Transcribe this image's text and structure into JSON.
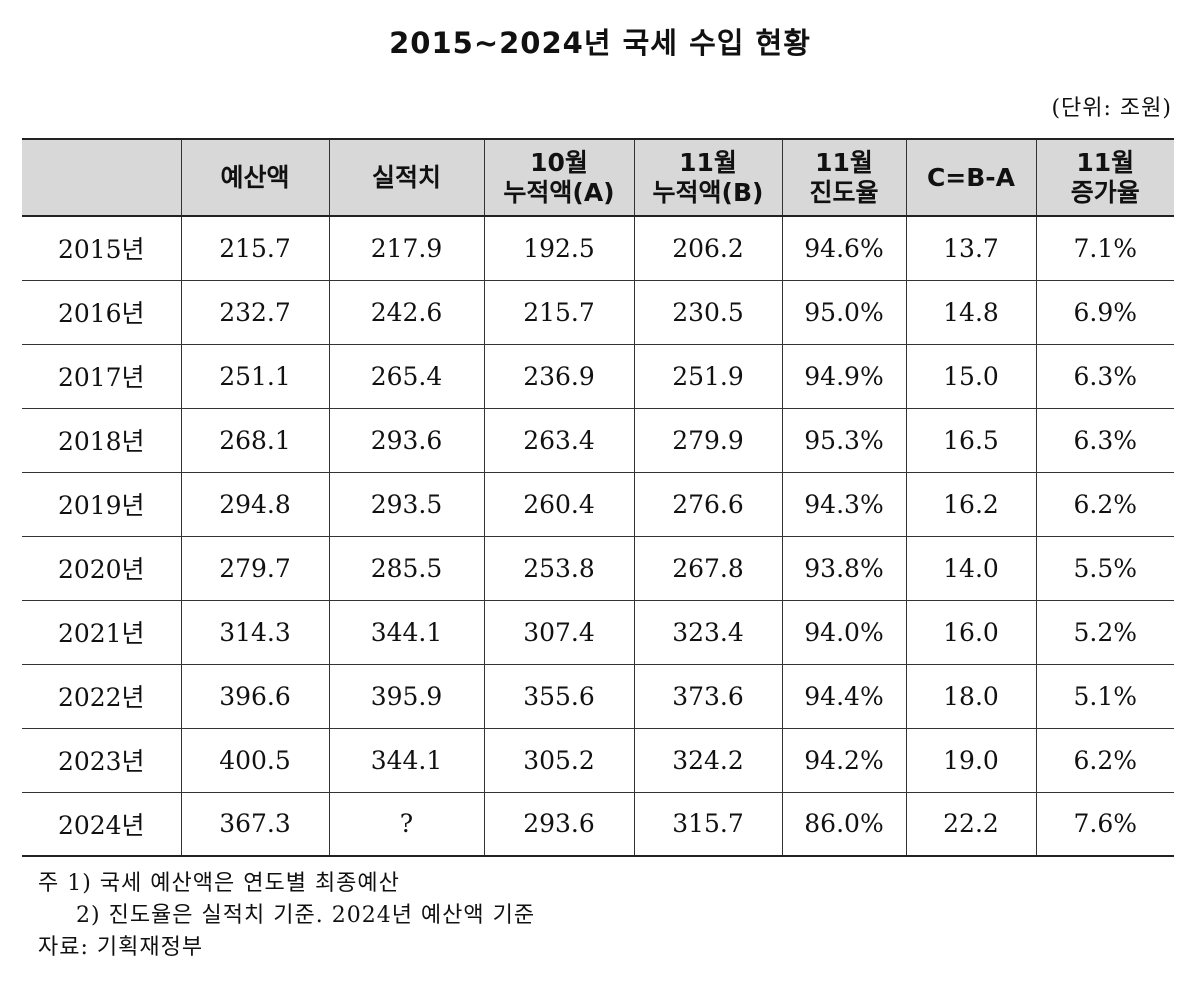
{
  "title": "2015~2024년 국세 수입 현황",
  "unit": "(단위: 조원)",
  "table": {
    "headers": [
      [
        ""
      ],
      [
        "예산액"
      ],
      [
        "실적치"
      ],
      [
        "10월",
        "누적액(A)"
      ],
      [
        "11월",
        "누적액(B)"
      ],
      [
        "11월",
        "진도율"
      ],
      [
        "C=B-A"
      ],
      [
        "11월",
        "증가율"
      ]
    ],
    "rows": [
      [
        "2015년",
        "215.7",
        "217.9",
        "192.5",
        "206.2",
        "94.6%",
        "13.7",
        "7.1%"
      ],
      [
        "2016년",
        "232.7",
        "242.6",
        "215.7",
        "230.5",
        "95.0%",
        "14.8",
        "6.9%"
      ],
      [
        "2017년",
        "251.1",
        "265.4",
        "236.9",
        "251.9",
        "94.9%",
        "15.0",
        "6.3%"
      ],
      [
        "2018년",
        "268.1",
        "293.6",
        "263.4",
        "279.9",
        "95.3%",
        "16.5",
        "6.3%"
      ],
      [
        "2019년",
        "294.8",
        "293.5",
        "260.4",
        "276.6",
        "94.3%",
        "16.2",
        "6.2%"
      ],
      [
        "2020년",
        "279.7",
        "285.5",
        "253.8",
        "267.8",
        "93.8%",
        "14.0",
        "5.5%"
      ],
      [
        "2021년",
        "314.3",
        "344.1",
        "307.4",
        "323.4",
        "94.0%",
        "16.0",
        "5.2%"
      ],
      [
        "2022년",
        "396.6",
        "395.9",
        "355.6",
        "373.6",
        "94.4%",
        "18.0",
        "5.1%"
      ],
      [
        "2023년",
        "400.5",
        "344.1",
        "305.2",
        "324.2",
        "94.2%",
        "19.0",
        "6.2%"
      ],
      [
        "2024년",
        "367.3",
        "?",
        "293.6",
        "315.7",
        "86.0%",
        "22.2",
        "7.6%"
      ]
    ]
  },
  "notes": {
    "note1": "주 1) 국세 예산액은 연도별 최종예산",
    "note2": "2) 진도율은 실적치 기준. 2024년 예산액 기준",
    "source": "자료: 기획재정부"
  }
}
